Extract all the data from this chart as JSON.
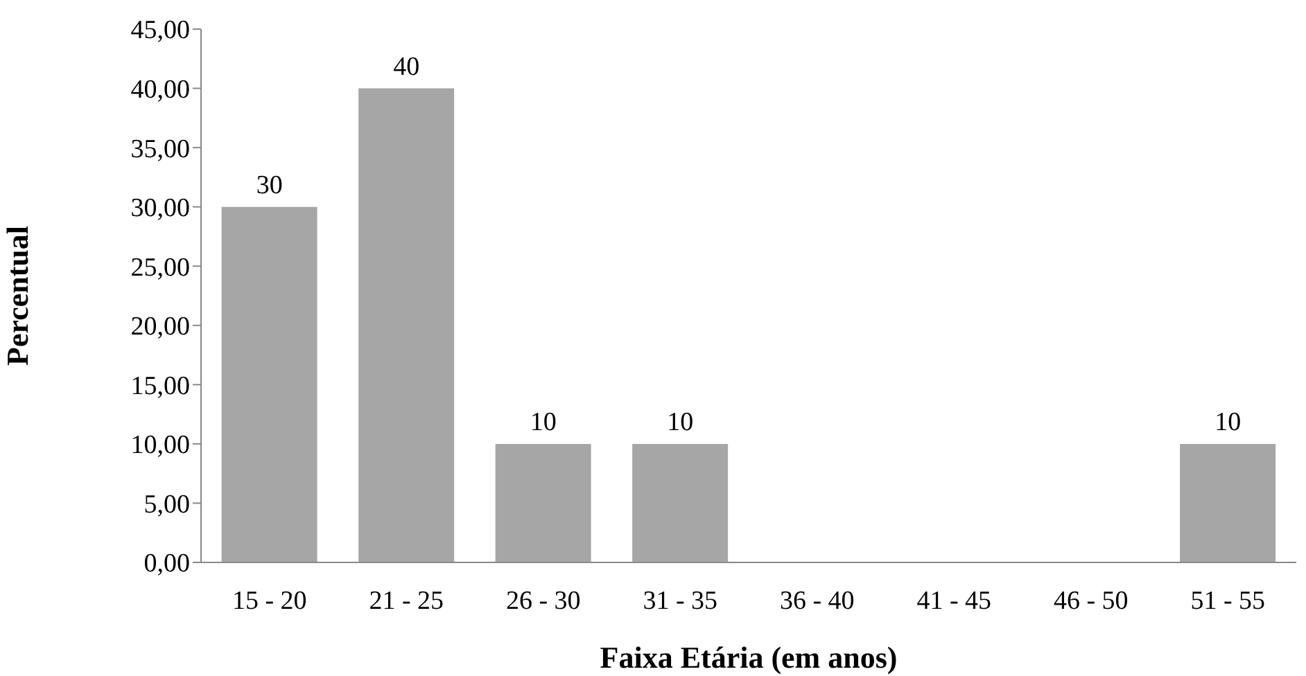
{
  "chart_data": {
    "type": "bar",
    "xlabel": "Faixa Etária (em anos)",
    "ylabel": "Percentual",
    "categories": [
      "15 - 20",
      "21 - 25",
      "26 - 30",
      "31 - 35",
      "36 - 40",
      "41 - 45",
      "46 - 50",
      "51 - 55"
    ],
    "values": [
      30,
      40,
      10,
      10,
      0,
      0,
      0,
      10
    ],
    "value_labels": [
      "30",
      "40",
      "10",
      "10",
      null,
      null,
      null,
      "10"
    ],
    "color": "#a6a6a6",
    "ylim": [
      0,
      45
    ],
    "yticks": [
      {
        "value": 0,
        "label": "0,00"
      },
      {
        "value": 5,
        "label": "5,00"
      },
      {
        "value": 10,
        "label": "10,00"
      },
      {
        "value": 15,
        "label": "15,00"
      },
      {
        "value": 20,
        "label": "20,00"
      },
      {
        "value": 25,
        "label": "25,00"
      },
      {
        "value": 30,
        "label": "30,00"
      },
      {
        "value": 35,
        "label": "35,00"
      },
      {
        "value": 40,
        "label": "40,00"
      },
      {
        "value": 45,
        "label": "45,00"
      }
    ],
    "grid": false,
    "legend": false
  }
}
